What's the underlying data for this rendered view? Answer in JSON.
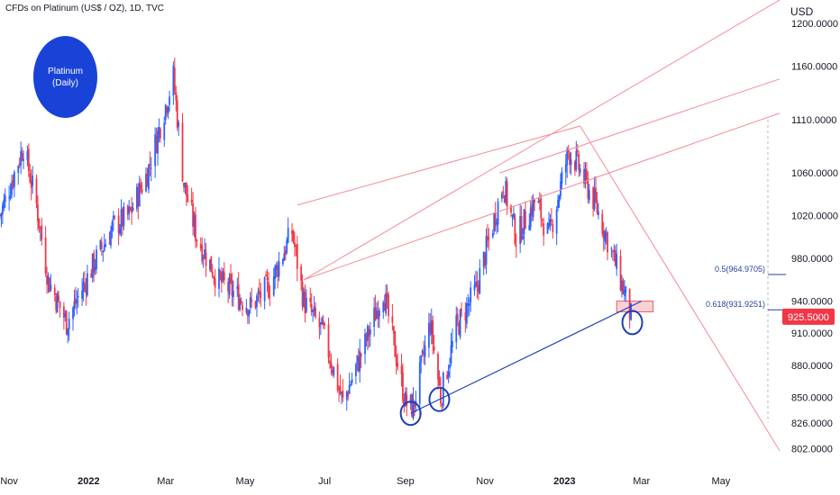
{
  "header": {
    "symbol_title": "CFDs on Platinum (US$ / OZ), 1D, TVC",
    "currency": "USD"
  },
  "badge": {
    "line1": "Platinum",
    "line2": "(Daily)"
  },
  "colors": {
    "up": "#2962ff",
    "down": "#f23645",
    "fib_zone": "#f7c9cd",
    "fib_zone_border": "#f23645",
    "pitchfork": "#f48a97",
    "support": "#1e3fb5",
    "circle": "#1e3fb5",
    "last_price_bg": "#f23645",
    "badge": "#1942d6"
  },
  "chart_data": {
    "type": "candlestick",
    "title": "CFDs on Platinum (US$ / OZ), 1D, TVC",
    "interval": "1D",
    "ylabel": "USD",
    "ylim": [
      788,
      1222
    ],
    "y_ticks": [
      802,
      826,
      850,
      880,
      910,
      940,
      980,
      1020,
      1060,
      1110,
      1160,
      1200
    ],
    "y_tick_labels": [
      "802.0000",
      "826.0000",
      "850.0000",
      "880.0000",
      "910.0000",
      "940.0000",
      "980.0000",
      "1020.0000",
      "1060.0000",
      "1110.0000",
      "1160.0000",
      "1200.0000"
    ],
    "x_range": [
      "2021-10-25",
      "2023-06-15"
    ],
    "x_ticks": [
      {
        "date": "2021-11-01",
        "label": "Nov",
        "bold": false
      },
      {
        "date": "2022-01-01",
        "label": "2022",
        "bold": true
      },
      {
        "date": "2022-03-01",
        "label": "Mar",
        "bold": false
      },
      {
        "date": "2022-05-01",
        "label": "May",
        "bold": false
      },
      {
        "date": "2022-07-01",
        "label": "Jul",
        "bold": false
      },
      {
        "date": "2022-09-01",
        "label": "Sep",
        "bold": false
      },
      {
        "date": "2022-11-01",
        "label": "Nov",
        "bold": false
      },
      {
        "date": "2023-01-01",
        "label": "2023",
        "bold": true
      },
      {
        "date": "2023-03-01",
        "label": "Mar",
        "bold": false
      },
      {
        "date": "2023-05-01",
        "label": "May",
        "bold": false
      }
    ],
    "price_path": [
      [
        "2021-10-25",
        1020
      ],
      [
        "2021-11-12",
        1085
      ],
      [
        "2021-11-22",
        1030
      ],
      [
        "2021-12-01",
        960
      ],
      [
        "2021-12-15",
        920
      ],
      [
        "2022-01-05",
        975
      ],
      [
        "2022-01-20",
        1010
      ],
      [
        "2022-02-01",
        1020
      ],
      [
        "2022-02-15",
        1060
      ],
      [
        "2022-03-07",
        1150
      ],
      [
        "2022-03-15",
        1050
      ],
      [
        "2022-03-25",
        1000
      ],
      [
        "2022-04-10",
        960
      ],
      [
        "2022-05-05",
        935
      ],
      [
        "2022-05-20",
        955
      ],
      [
        "2022-06-06",
        1005
      ],
      [
        "2022-06-15",
        940
      ],
      [
        "2022-06-30",
        910
      ],
      [
        "2022-07-15",
        845
      ],
      [
        "2022-08-01",
        900
      ],
      [
        "2022-08-15",
        950
      ],
      [
        "2022-09-01",
        845
      ],
      [
        "2022-09-07",
        840
      ],
      [
        "2022-09-20",
        920
      ],
      [
        "2022-09-28",
        850
      ],
      [
        "2022-10-10",
        915
      ],
      [
        "2022-10-25",
        950
      ],
      [
        "2022-11-15",
        1050
      ],
      [
        "2022-11-25",
        1000
      ],
      [
        "2022-12-10",
        1035
      ],
      [
        "2022-12-20",
        1000
      ],
      [
        "2023-01-04",
        1080
      ],
      [
        "2023-01-10",
        1070
      ],
      [
        "2023-01-25",
        1030
      ],
      [
        "2023-02-05",
        990
      ],
      [
        "2023-02-13",
        960
      ],
      [
        "2023-02-21",
        925.5
      ]
    ],
    "last_price": 925.5,
    "last_price_label": "925.5000",
    "fib_levels": [
      {
        "ratio": 0.5,
        "price": 964.9705,
        "label": "0.5(964.9705)"
      },
      {
        "ratio": 0.618,
        "price": 931.9251,
        "label": "0.618(931.9251)"
      }
    ],
    "support_line": {
      "from": [
        "2022-09-05",
        835
      ],
      "to": [
        "2023-03-01",
        940
      ]
    },
    "pitchfork_pivot": [
      "2023-01-13",
      1104
    ],
    "pitchfork_lines": [
      {
        "from": [
          "2022-06-10",
          1030
        ],
        "to": [
          "2023-01-13",
          1104
        ]
      },
      {
        "from": [
          "2022-06-15",
          960
        ],
        "to": [
          "2023-06-15",
          1116
        ]
      },
      {
        "from": [
          "2022-06-15",
          960
        ],
        "to": [
          "2023-06-15",
          1222
        ]
      },
      {
        "from": [
          "2022-11-12",
          1060
        ],
        "to": [
          "2023-06-15",
          1148
        ]
      },
      {
        "from": [
          "2023-01-13",
          1104
        ],
        "to": [
          "2023-06-15",
          800
        ]
      }
    ],
    "circles": [
      {
        "date": "2022-09-05",
        "price": 835
      },
      {
        "date": "2022-09-27",
        "price": 848
      },
      {
        "date": "2023-02-22",
        "price": 920
      }
    ],
    "marked_zone": {
      "from": "2023-02-10",
      "to": "2023-03-10",
      "low": 930,
      "high": 940
    }
  }
}
